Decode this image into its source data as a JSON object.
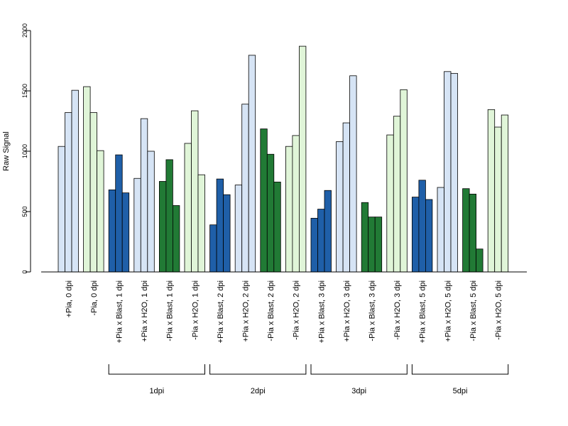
{
  "chart_data": {
    "type": "bar",
    "ylabel": "Raw Signal",
    "xlabel": "",
    "ylim": [
      0,
      2000
    ],
    "yticks": [
      "0",
      "500",
      "1000",
      "1500",
      "2000"
    ],
    "grid": false,
    "bars_per_category": 3,
    "categories": [
      {
        "label": "+Pia, 0 dpi",
        "color": "#d6e4f5",
        "values": [
          1040,
          1320,
          1505
        ]
      },
      {
        "label": "-Pia, 0 dpi",
        "color": "#e0f5d8",
        "values": [
          1535,
          1320,
          1005
        ]
      },
      {
        "label": "+Pia x Blast, 1 dpi",
        "color": "#1f5fa8",
        "values": [
          680,
          970,
          655
        ]
      },
      {
        "label": "+Pia x H2O, 1 dpi",
        "color": "#d6e4f5",
        "values": [
          775,
          1270,
          1000
        ]
      },
      {
        "label": "-Pia x Blast, 1 dpi",
        "color": "#217a35",
        "values": [
          750,
          930,
          550
        ]
      },
      {
        "label": "-Pia x H2O, 1 dpi",
        "color": "#e0f5d8",
        "values": [
          1065,
          1335,
          805
        ]
      },
      {
        "label": "+Pia x Blast, 2 dpi",
        "color": "#1f5fa8",
        "values": [
          390,
          770,
          640
        ]
      },
      {
        "label": "+Pia x H2O, 2 dpi",
        "color": "#d6e4f5",
        "values": [
          720,
          1390,
          1795
        ]
      },
      {
        "label": "-Pia x Blast, 2 dpi",
        "color": "#217a35",
        "values": [
          1185,
          975,
          745
        ]
      },
      {
        "label": "-Pia x H2O, 2 dpi",
        "color": "#e0f5d8",
        "values": [
          1040,
          1130,
          1870
        ]
      },
      {
        "label": "+Pia x Blast, 3 dpi",
        "color": "#1f5fa8",
        "values": [
          445,
          520,
          675
        ]
      },
      {
        "label": "+Pia x H2O, 3 dpi",
        "color": "#d6e4f5",
        "values": [
          1080,
          1235,
          1625
        ]
      },
      {
        "label": "-Pia x Blast, 3 dpi",
        "color": "#217a35",
        "values": [
          575,
          455,
          455
        ]
      },
      {
        "label": "-Pia x H2O, 3 dpi",
        "color": "#e0f5d8",
        "values": [
          1135,
          1290,
          1510
        ]
      },
      {
        "label": "+Pia x Blast, 5 dpi",
        "color": "#1f5fa8",
        "values": [
          620,
          760,
          600
        ]
      },
      {
        "label": "+Pia x H2O, 5 dpi",
        "color": "#d6e4f5",
        "values": [
          700,
          1660,
          1645
        ]
      },
      {
        "label": "-Pia x Blast, 5 dpi",
        "color": "#217a35",
        "values": [
          690,
          645,
          190
        ]
      },
      {
        "label": "-Pia x H2O, 5 dpi",
        "color": "#e0f5d8",
        "values": [
          1345,
          1200,
          1300
        ]
      }
    ],
    "groups": [
      {
        "label": "1dpi",
        "first_category": 2,
        "last_category": 5
      },
      {
        "label": "2dpi",
        "first_category": 6,
        "last_category": 9
      },
      {
        "label": "3dpi",
        "first_category": 10,
        "last_category": 13
      },
      {
        "label": "5dpi",
        "first_category": 14,
        "last_category": 17
      }
    ]
  }
}
